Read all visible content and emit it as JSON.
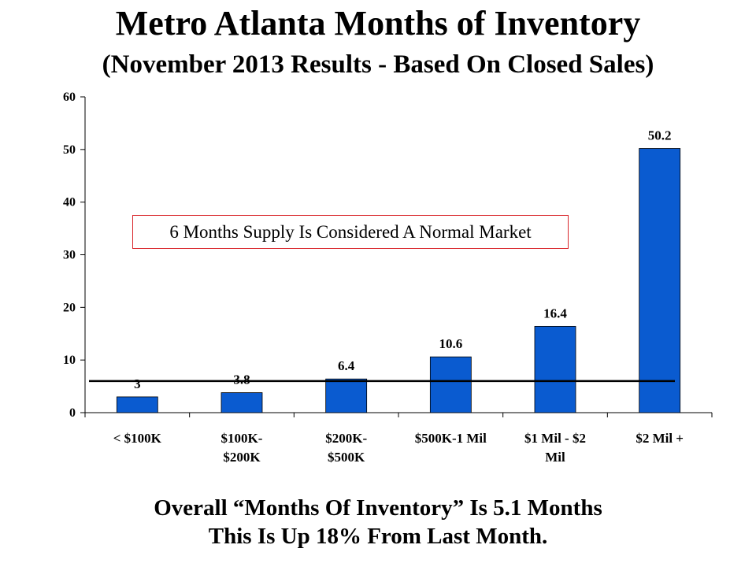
{
  "page": {
    "title": "Metro Atlanta Months of Inventory",
    "subtitle": "(November 2013 Results - Based On Closed Sales)",
    "annotation": "6 Months Supply Is Considered A Normal Market",
    "footer_line1": "Overall “Months Of Inventory” Is 5.1 Months",
    "footer_line2": "This Is Up 18% From Last Month."
  },
  "chart_data": {
    "type": "bar",
    "title": "Metro Atlanta Months of Inventory",
    "subtitle": "(November 2013 Results - Based On Closed Sales)",
    "categories": [
      [
        "< $100K"
      ],
      [
        "$100K-",
        "$200K"
      ],
      [
        "$200K-",
        "$500K"
      ],
      [
        "$500K-1 Mil"
      ],
      [
        "$1 Mil - $2",
        "Mil"
      ],
      [
        "$2 Mil +"
      ]
    ],
    "values": [
      3,
      3.8,
      6.4,
      10.6,
      16.4,
      50.2
    ],
    "data_labels": [
      "3",
      "3.8",
      "6.4",
      "10.6",
      "16.4",
      "50.2"
    ],
    "ylim": [
      0,
      60
    ],
    "yticks": [
      0,
      10,
      20,
      30,
      40,
      50,
      60
    ],
    "grid": false,
    "reference_line": {
      "value": 6
    },
    "colors": {
      "bar": "#0a5bd0",
      "bar_edge": "#000000",
      "annotation_border": "#d9262b"
    }
  }
}
